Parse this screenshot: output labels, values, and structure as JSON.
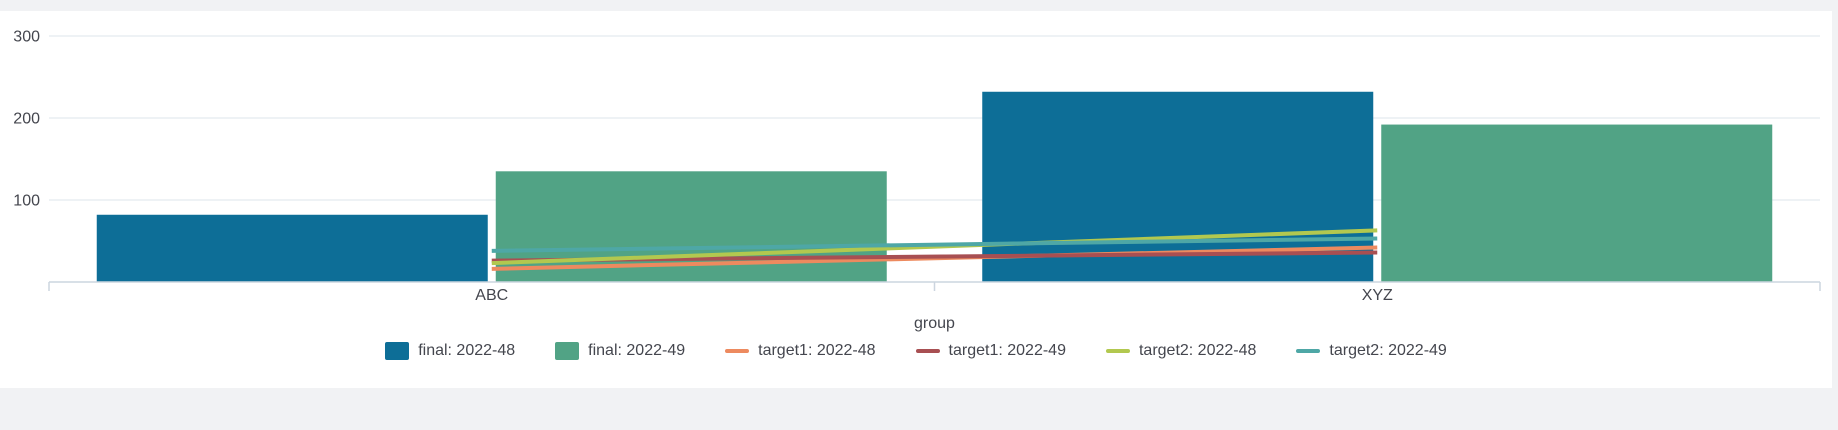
{
  "page": {
    "background_color": "#f1f2f4",
    "card_color": "#ffffff"
  },
  "chart_data": {
    "type": "bar",
    "categories": [
      "ABC",
      "XYZ"
    ],
    "title": "",
    "xlabel": "group",
    "ylabel": "",
    "ylim": [
      0,
      300
    ],
    "yticks": [
      100,
      200,
      300
    ],
    "grid": true,
    "legend_position": "bottom",
    "bar_series": [
      {
        "name": "final: 2022-48",
        "color": "#0d6e97",
        "values": [
          82,
          232
        ]
      },
      {
        "name": "final: 2022-49",
        "color": "#51a385",
        "values": [
          135,
          192
        ]
      }
    ],
    "line_series": [
      {
        "name": "target1: 2022-48",
        "color": "#ed8a5f",
        "values": [
          16,
          42
        ]
      },
      {
        "name": "target1: 2022-49",
        "color": "#a84f52",
        "values": [
          26,
          36
        ]
      },
      {
        "name": "target2: 2022-48",
        "color": "#b2c84f",
        "values": [
          23,
          63
        ]
      },
      {
        "name": "target2: 2022-49",
        "color": "#4ea7a6",
        "values": [
          38,
          53
        ]
      }
    ],
    "colors": {
      "grid_line": "#e9edf2",
      "axis_line": "#ccd5df",
      "tick_label": "#44464e",
      "axis_title": "#44464e"
    }
  }
}
